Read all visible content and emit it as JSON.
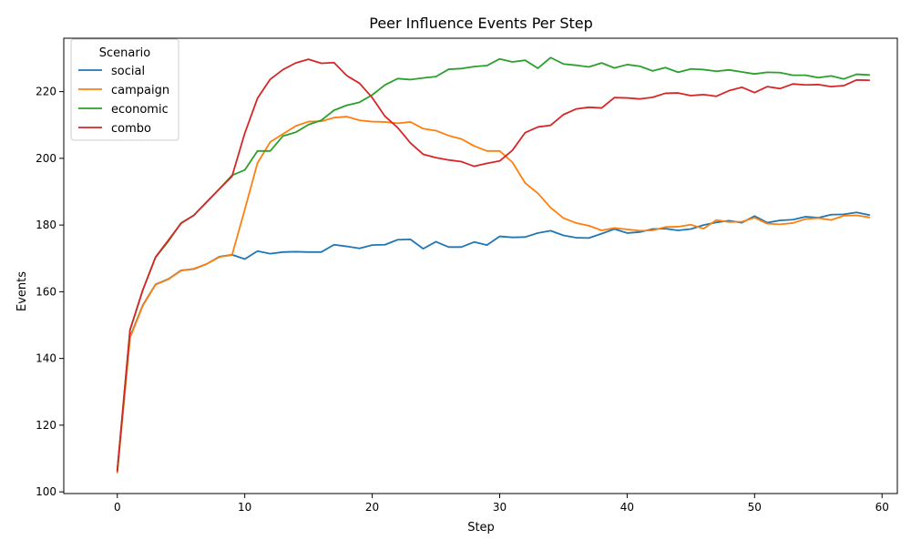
{
  "chart_data": {
    "type": "line",
    "title": "Peer Influence Events Per Step",
    "xlabel": "Step",
    "ylabel": "Events",
    "xlim": [
      -4.2,
      61.2
    ],
    "ylim": [
      99.5,
      236
    ],
    "xticks": [
      0,
      10,
      20,
      30,
      40,
      50,
      60
    ],
    "yticks": [
      100,
      120,
      140,
      160,
      180,
      200,
      220
    ],
    "grid": false,
    "legend": {
      "title": "Scenario",
      "position": "upper-left"
    },
    "x": [
      0,
      1,
      2,
      3,
      4,
      5,
      6,
      7,
      8,
      9,
      10,
      11,
      12,
      13,
      14,
      15,
      16,
      17,
      18,
      19,
      20,
      21,
      22,
      23,
      24,
      25,
      26,
      27,
      28,
      29,
      30,
      31,
      32,
      33,
      34,
      35,
      36,
      37,
      38,
      39,
      40,
      41,
      42,
      43,
      44,
      45,
      46,
      47,
      48,
      49,
      50,
      51,
      52,
      53,
      54,
      55,
      56,
      57,
      58,
      59
    ],
    "series": [
      {
        "name": "social",
        "color": "#1f77b4",
        "values": [
          106.2,
          146.5,
          156.0,
          162.2,
          163.8,
          166.4,
          166.8,
          168.3,
          170.5,
          171.1,
          169.8,
          172.2,
          171.4,
          171.9,
          172.0,
          171.9,
          171.9,
          174.1,
          173.6,
          173.0,
          174.0,
          174.1,
          175.6,
          175.7,
          172.9,
          175.0,
          173.4,
          173.4,
          174.9,
          174.0,
          176.6,
          176.3,
          176.4,
          177.6,
          178.3,
          176.9,
          176.2,
          176.1,
          177.4,
          178.8,
          177.6,
          177.9,
          178.8,
          178.9,
          178.4,
          178.8,
          180.0,
          180.8,
          181.3,
          180.7,
          182.7,
          180.7,
          181.4,
          181.6,
          182.5,
          182.2,
          183.1,
          183.2,
          183.8,
          183.0
        ]
      },
      {
        "name": "campaign",
        "color": "#ff7f0e",
        "values": [
          105.8,
          146.2,
          155.8,
          162.1,
          163.7,
          166.3,
          166.9,
          168.3,
          170.4,
          171.0,
          184.6,
          198.6,
          204.9,
          207.3,
          209.7,
          211.0,
          211.1,
          212.2,
          212.5,
          211.4,
          211.0,
          210.9,
          210.5,
          210.9,
          208.9,
          208.3,
          206.8,
          205.8,
          203.7,
          202.2,
          202.2,
          198.8,
          192.6,
          189.5,
          185.2,
          182.1,
          180.6,
          179.8,
          178.4,
          179.1,
          178.7,
          178.3,
          178.4,
          179.4,
          179.5,
          180.1,
          178.9,
          181.5,
          180.9,
          181.0,
          182.2,
          180.4,
          180.2,
          180.6,
          181.8,
          182.1,
          181.5,
          182.8,
          182.9,
          182.3
        ]
      },
      {
        "name": "economic",
        "color": "#2ca02c",
        "values": [
          106.5,
          148.5,
          160.5,
          170.3,
          175.1,
          180.6,
          182.9,
          186.8,
          190.8,
          194.9,
          196.5,
          202.2,
          202.2,
          206.7,
          207.8,
          210.1,
          211.4,
          214.4,
          215.9,
          216.8,
          219.0,
          222.0,
          223.9,
          223.6,
          224.1,
          224.5,
          226.7,
          226.9,
          227.5,
          227.8,
          229.8,
          228.9,
          229.4,
          227.0,
          230.2,
          228.3,
          227.9,
          227.4,
          228.6,
          227.1,
          228.1,
          227.6,
          226.2,
          227.2,
          225.8,
          226.8,
          226.6,
          226.1,
          226.5,
          225.9,
          225.3,
          225.8,
          225.7,
          224.9,
          224.9,
          224.2,
          224.7,
          223.8,
          225.2,
          225.0
        ]
      },
      {
        "name": "combo",
        "color": "#d62728",
        "values": [
          106.3,
          148.6,
          160.5,
          170.4,
          175.4,
          180.5,
          182.9,
          186.9,
          190.8,
          194.6,
          207.5,
          218.0,
          223.7,
          226.6,
          228.6,
          229.7,
          228.5,
          228.7,
          224.8,
          222.5,
          218.2,
          212.6,
          209.2,
          204.6,
          201.2,
          200.2,
          199.5,
          199.0,
          197.6,
          198.5,
          199.2,
          202.4,
          207.7,
          209.4,
          209.9,
          213.1,
          214.8,
          215.3,
          215.1,
          218.2,
          218.1,
          217.8,
          218.3,
          219.5,
          219.6,
          218.8,
          219.1,
          218.6,
          220.3,
          221.3,
          219.7,
          221.5,
          220.9,
          222.3,
          222.0,
          222.1,
          221.5,
          221.8,
          223.5,
          223.4
        ]
      }
    ]
  }
}
